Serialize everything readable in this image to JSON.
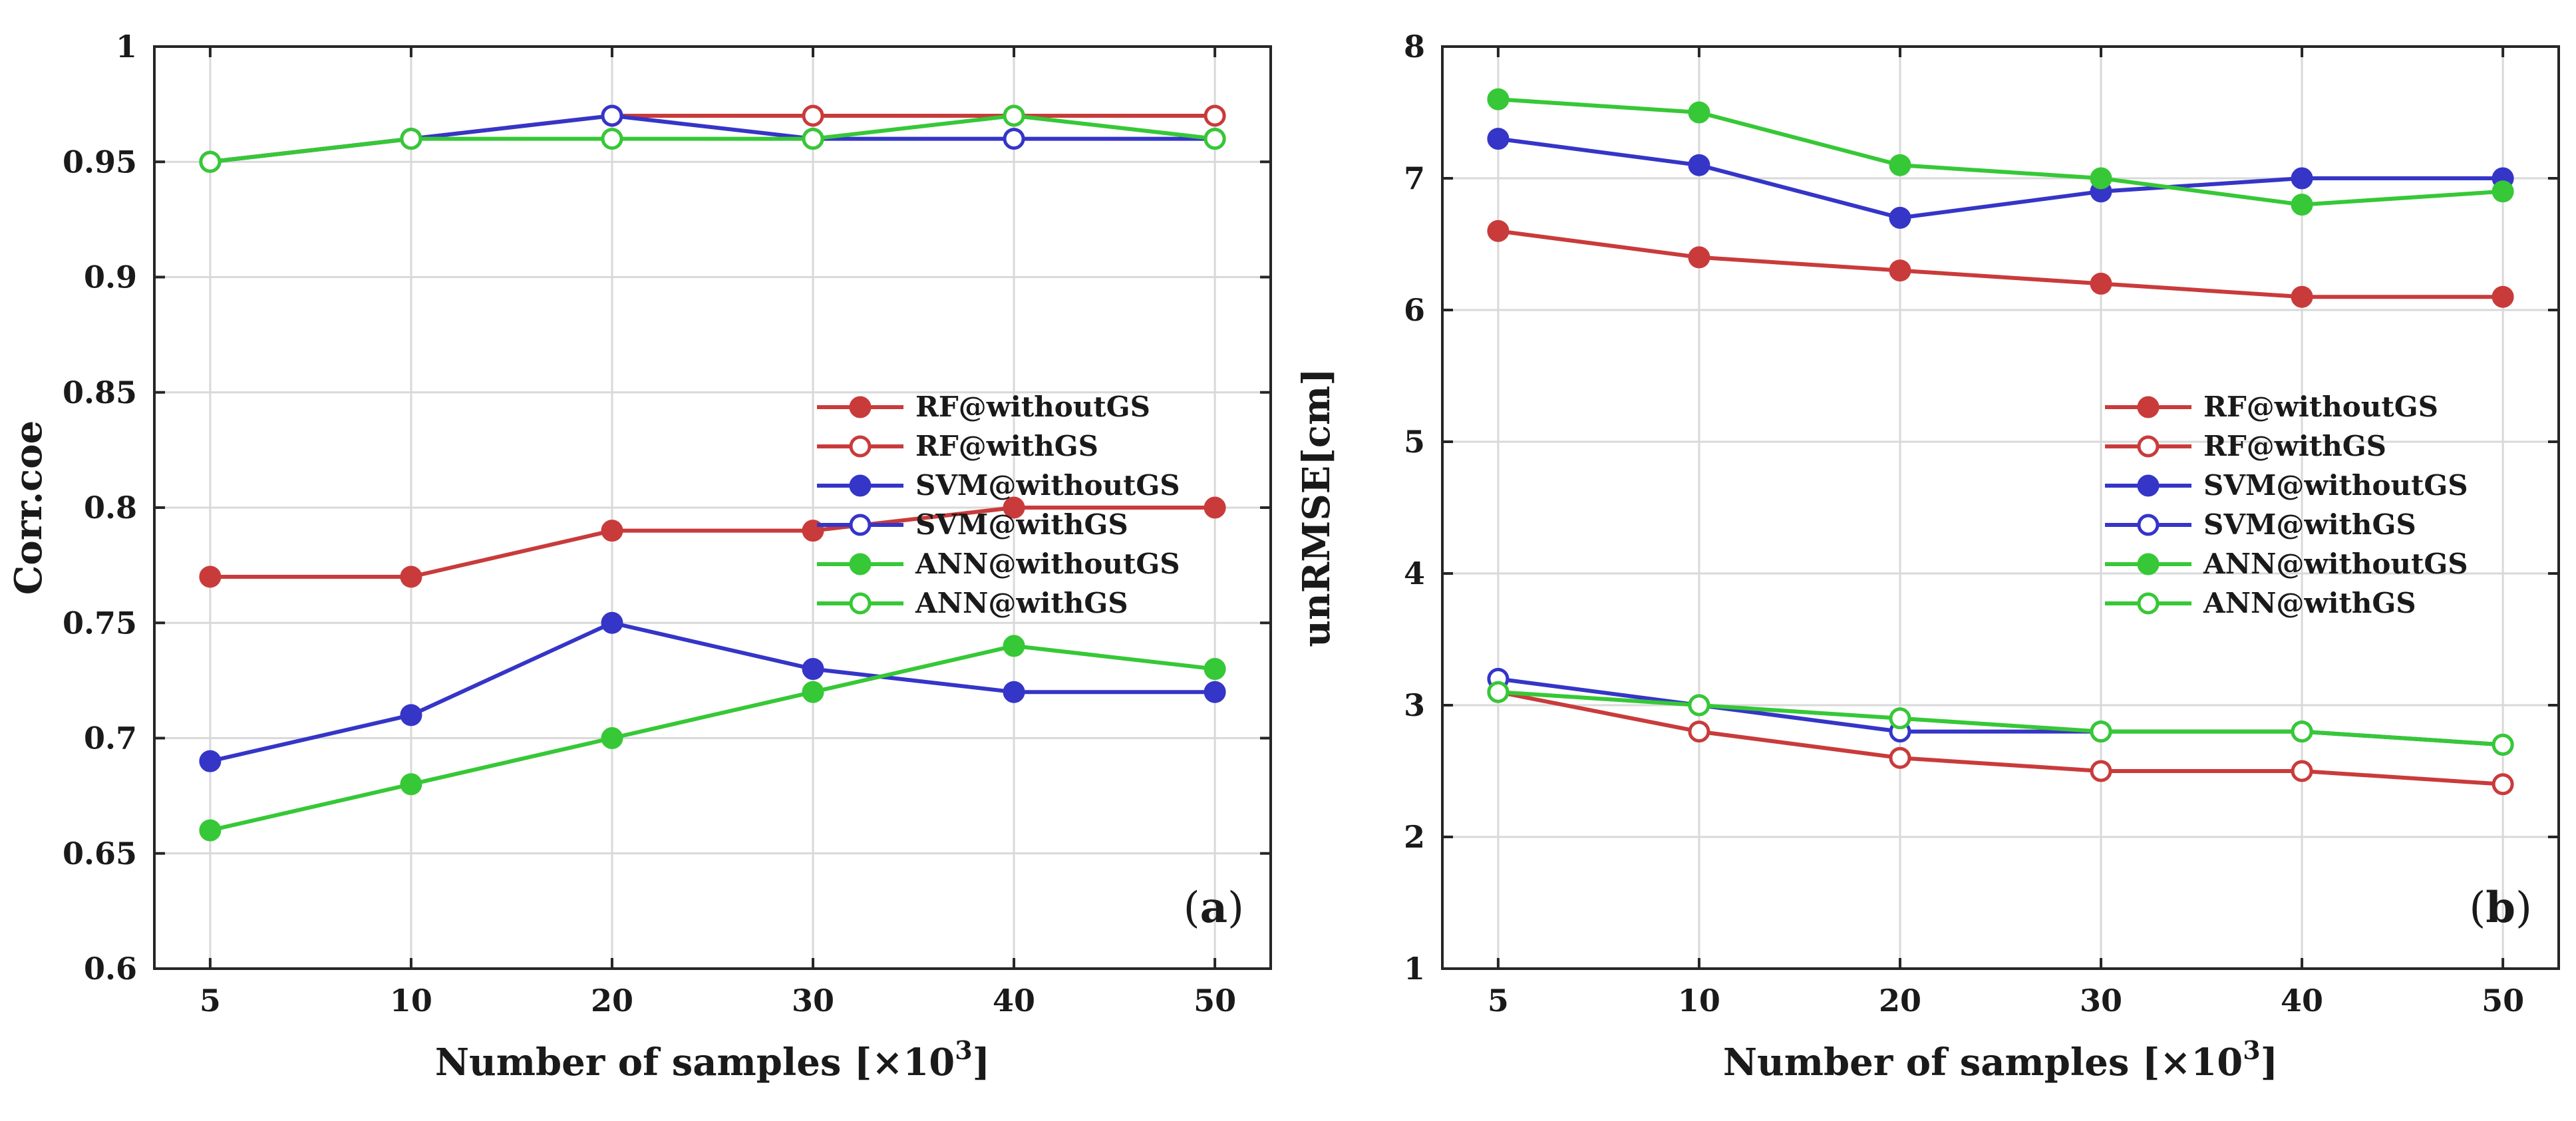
{
  "chart_data": [
    {
      "type": "line",
      "panel_label": "a",
      "title": "",
      "xlabel": "Number of samples [×10",
      "xlabel_sup": "3",
      "xlabel_end": "]",
      "ylabel": "Corr.coe",
      "categories": [
        "5",
        "10",
        "20",
        "30",
        "40",
        "50"
      ],
      "ylim": [
        0.6,
        1
      ],
      "yticks": [
        0.6,
        0.65,
        0.7,
        0.75,
        0.8,
        0.85,
        0.9,
        0.95,
        1
      ],
      "ytick_labels": [
        "0.6",
        "0.65",
        "0.7",
        "0.75",
        "0.8",
        "0.85",
        "0.9",
        "0.95",
        "1"
      ],
      "grid": true,
      "legend_position": "center-right",
      "series": [
        {
          "name": "RF@withoutGS",
          "color": "#c93b3b",
          "filled": true,
          "values": [
            0.77,
            0.77,
            0.79,
            0.79,
            0.8,
            0.8
          ]
        },
        {
          "name": "RF@withGS",
          "color": "#c93b3b",
          "filled": false,
          "values": [
            0.95,
            0.96,
            0.97,
            0.97,
            0.97,
            0.97
          ]
        },
        {
          "name": "SVM@withoutGS",
          "color": "#3535c8",
          "filled": true,
          "values": [
            0.69,
            0.71,
            0.75,
            0.73,
            0.72,
            0.72
          ]
        },
        {
          "name": "SVM@withGS",
          "color": "#3535c8",
          "filled": false,
          "values": [
            0.95,
            0.96,
            0.97,
            0.96,
            0.96,
            0.96
          ]
        },
        {
          "name": "ANN@withoutGS",
          "color": "#36c836",
          "filled": true,
          "values": [
            0.66,
            0.68,
            0.7,
            0.72,
            0.74,
            0.73
          ]
        },
        {
          "name": "ANN@withGS",
          "color": "#36c836",
          "filled": false,
          "values": [
            0.95,
            0.96,
            0.96,
            0.96,
            0.97,
            0.96
          ]
        }
      ]
    },
    {
      "type": "line",
      "panel_label": "b",
      "title": "",
      "xlabel": "Number of samples [×10",
      "xlabel_sup": "3",
      "xlabel_end": "]",
      "ylabel": "unRMSE[cm]",
      "categories": [
        "5",
        "10",
        "20",
        "30",
        "40",
        "50"
      ],
      "ylim": [
        1,
        8
      ],
      "yticks": [
        1,
        2,
        3,
        4,
        5,
        6,
        7,
        8
      ],
      "ytick_labels": [
        "1",
        "2",
        "3",
        "4",
        "5",
        "6",
        "7",
        "8"
      ],
      "grid": true,
      "legend_position": "center-right",
      "series": [
        {
          "name": "RF@withoutGS",
          "color": "#c93b3b",
          "filled": true,
          "values": [
            6.6,
            6.4,
            6.3,
            6.2,
            6.1,
            6.1
          ]
        },
        {
          "name": "RF@withGS",
          "color": "#c93b3b",
          "filled": false,
          "values": [
            3.1,
            2.8,
            2.6,
            2.5,
            2.5,
            2.4
          ]
        },
        {
          "name": "SVM@withoutGS",
          "color": "#3535c8",
          "filled": true,
          "values": [
            7.3,
            7.1,
            6.7,
            6.9,
            7.0,
            7.0
          ]
        },
        {
          "name": "SVM@withGS",
          "color": "#3535c8",
          "filled": false,
          "values": [
            3.2,
            3.0,
            2.8,
            2.8,
            2.8,
            2.7
          ]
        },
        {
          "name": "ANN@withoutGS",
          "color": "#36c836",
          "filled": true,
          "values": [
            7.6,
            7.5,
            7.1,
            7.0,
            6.8,
            6.9
          ]
        },
        {
          "name": "ANN@withGS",
          "color": "#36c836",
          "filled": false,
          "values": [
            3.1,
            3.0,
            2.9,
            2.8,
            2.8,
            2.7
          ]
        }
      ]
    }
  ]
}
